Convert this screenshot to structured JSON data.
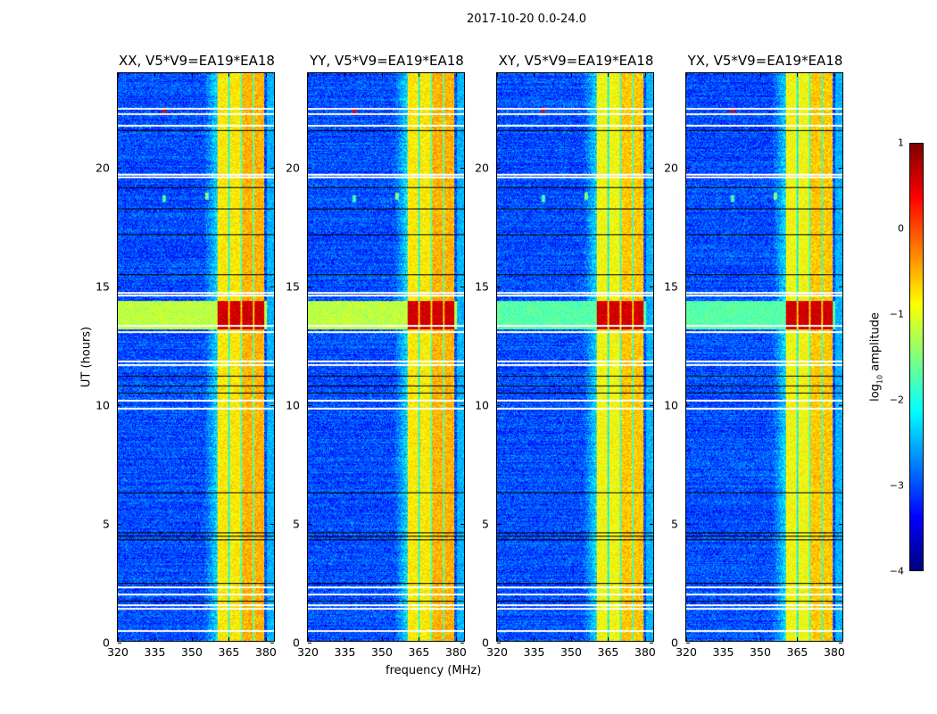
{
  "figure_title": "2017-10-20 0.0-24.0",
  "chart_data": [
    {
      "type": "heatmap",
      "panels": [
        {
          "title": "XX, V5*V9=EA19*EA18"
        },
        {
          "title": "YY, V5*V9=EA19*EA18"
        },
        {
          "title": "XY, V5*V9=EA19*EA18"
        },
        {
          "title": "YX, V5*V9=EA19*EA18"
        }
      ],
      "xlabel": "frequency (MHz)",
      "ylabel": "UT (hours)",
      "xlim": [
        320,
        384
      ],
      "ylim": [
        0,
        24
      ],
      "xticks": [
        "320",
        "335",
        "350",
        "365",
        "380"
      ],
      "xtick_values": [
        320,
        335,
        350,
        365,
        380
      ],
      "yticks": [
        "0",
        "5",
        "10",
        "15",
        "20"
      ],
      "ytick_values": [
        0,
        5,
        10,
        15,
        20
      ],
      "bright_band_mhz": [
        360.5,
        380
      ],
      "band_gaps_mhz": [
        365.5,
        370.5,
        375.5
      ],
      "background_log_amp": -3,
      "band_log_amp": -0.8,
      "rfi_burst_hours": [
        13.2,
        14.4
      ],
      "rfi_burst_band_log_amp": 0.6,
      "flagged_hours": [
        0.45,
        1.4,
        1.55,
        2.0,
        2.3,
        9.85,
        10.2,
        11.7,
        11.85,
        13.1,
        13.35,
        14.65,
        14.75,
        19.65,
        19.75,
        21.8,
        22.3,
        22.55
      ],
      "dark_hours": [
        1.7,
        2.45,
        4.3,
        4.45,
        4.6,
        6.3,
        10.5,
        10.8,
        11.2,
        15.5,
        17.2,
        18.3,
        19.2,
        21.6
      ],
      "point_sources": [
        {
          "mhz": 339,
          "hour": 22.4,
          "log_amp": 0.5
        },
        {
          "mhz": 339,
          "hour": 18.7,
          "log_amp": -1.8
        },
        {
          "mhz": 356.5,
          "hour": 18.8,
          "log_amp": -1.5
        }
      ]
    },
    {
      "type": "colorbar",
      "label": "log10 amplitude",
      "label_main": "log",
      "label_sub": "10",
      "label_rest": " amplitude",
      "range": [
        -4,
        1
      ],
      "ticks": [
        "1",
        "0",
        "−1",
        "−2",
        "−3",
        "−4"
      ],
      "tick_values": [
        1,
        0,
        -1,
        -2,
        -3,
        -4
      ],
      "colormap": "jet"
    }
  ]
}
